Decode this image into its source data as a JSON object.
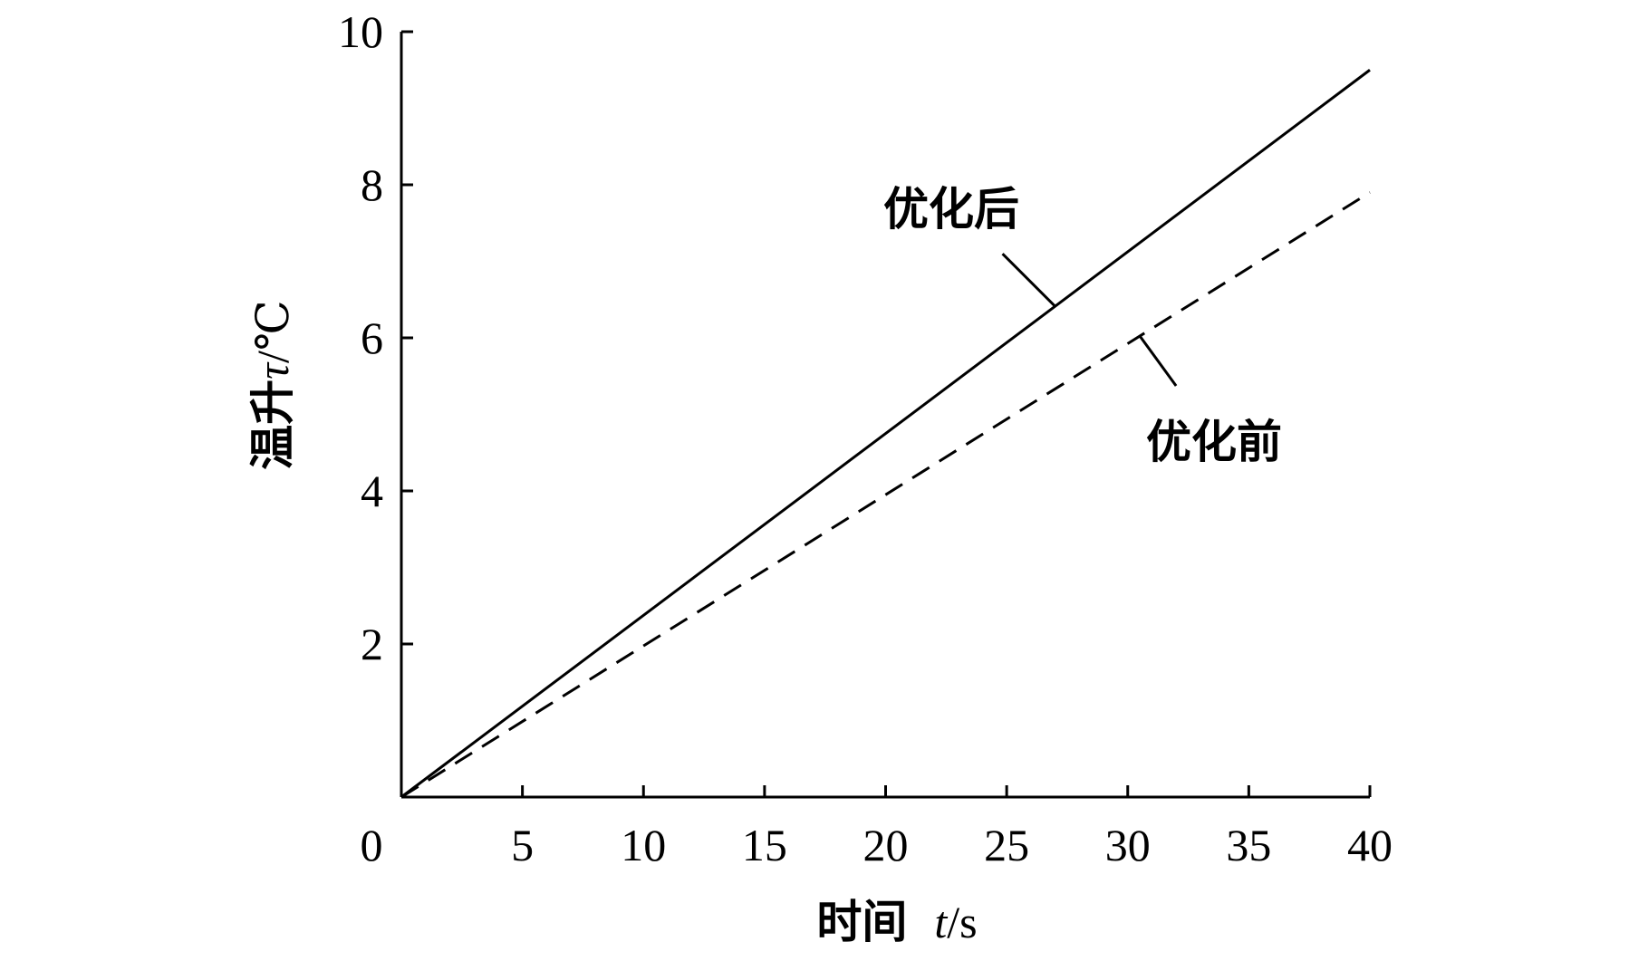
{
  "chart_data": {
    "type": "line",
    "xlabel": {
      "prefix": "时间",
      "var": "t",
      "unit": "/s"
    },
    "ylabel": {
      "prefix": "温升",
      "var": "τ",
      "unit": "/℃"
    },
    "xlim": [
      0,
      40
    ],
    "ylim": [
      0,
      10
    ],
    "x_ticks": [
      5,
      10,
      15,
      20,
      25,
      30,
      35,
      40
    ],
    "y_ticks": [
      2,
      4,
      6,
      8,
      10
    ],
    "origin_label": "0",
    "grid": false,
    "series": [
      {
        "name": "优化后",
        "style": "solid",
        "color": "#000000",
        "x": [
          0,
          40
        ],
        "y": [
          0,
          9.5
        ]
      },
      {
        "name": "优化前",
        "style": "dashed",
        "color": "#000000",
        "x": [
          0,
          40
        ],
        "y": [
          0,
          7.9
        ]
      }
    ],
    "annotations": [
      {
        "text": "优化后",
        "series": "优化后",
        "anchor_x": 27
      },
      {
        "text": "优化前",
        "series": "优化前",
        "anchor_x": 30.5
      }
    ]
  }
}
